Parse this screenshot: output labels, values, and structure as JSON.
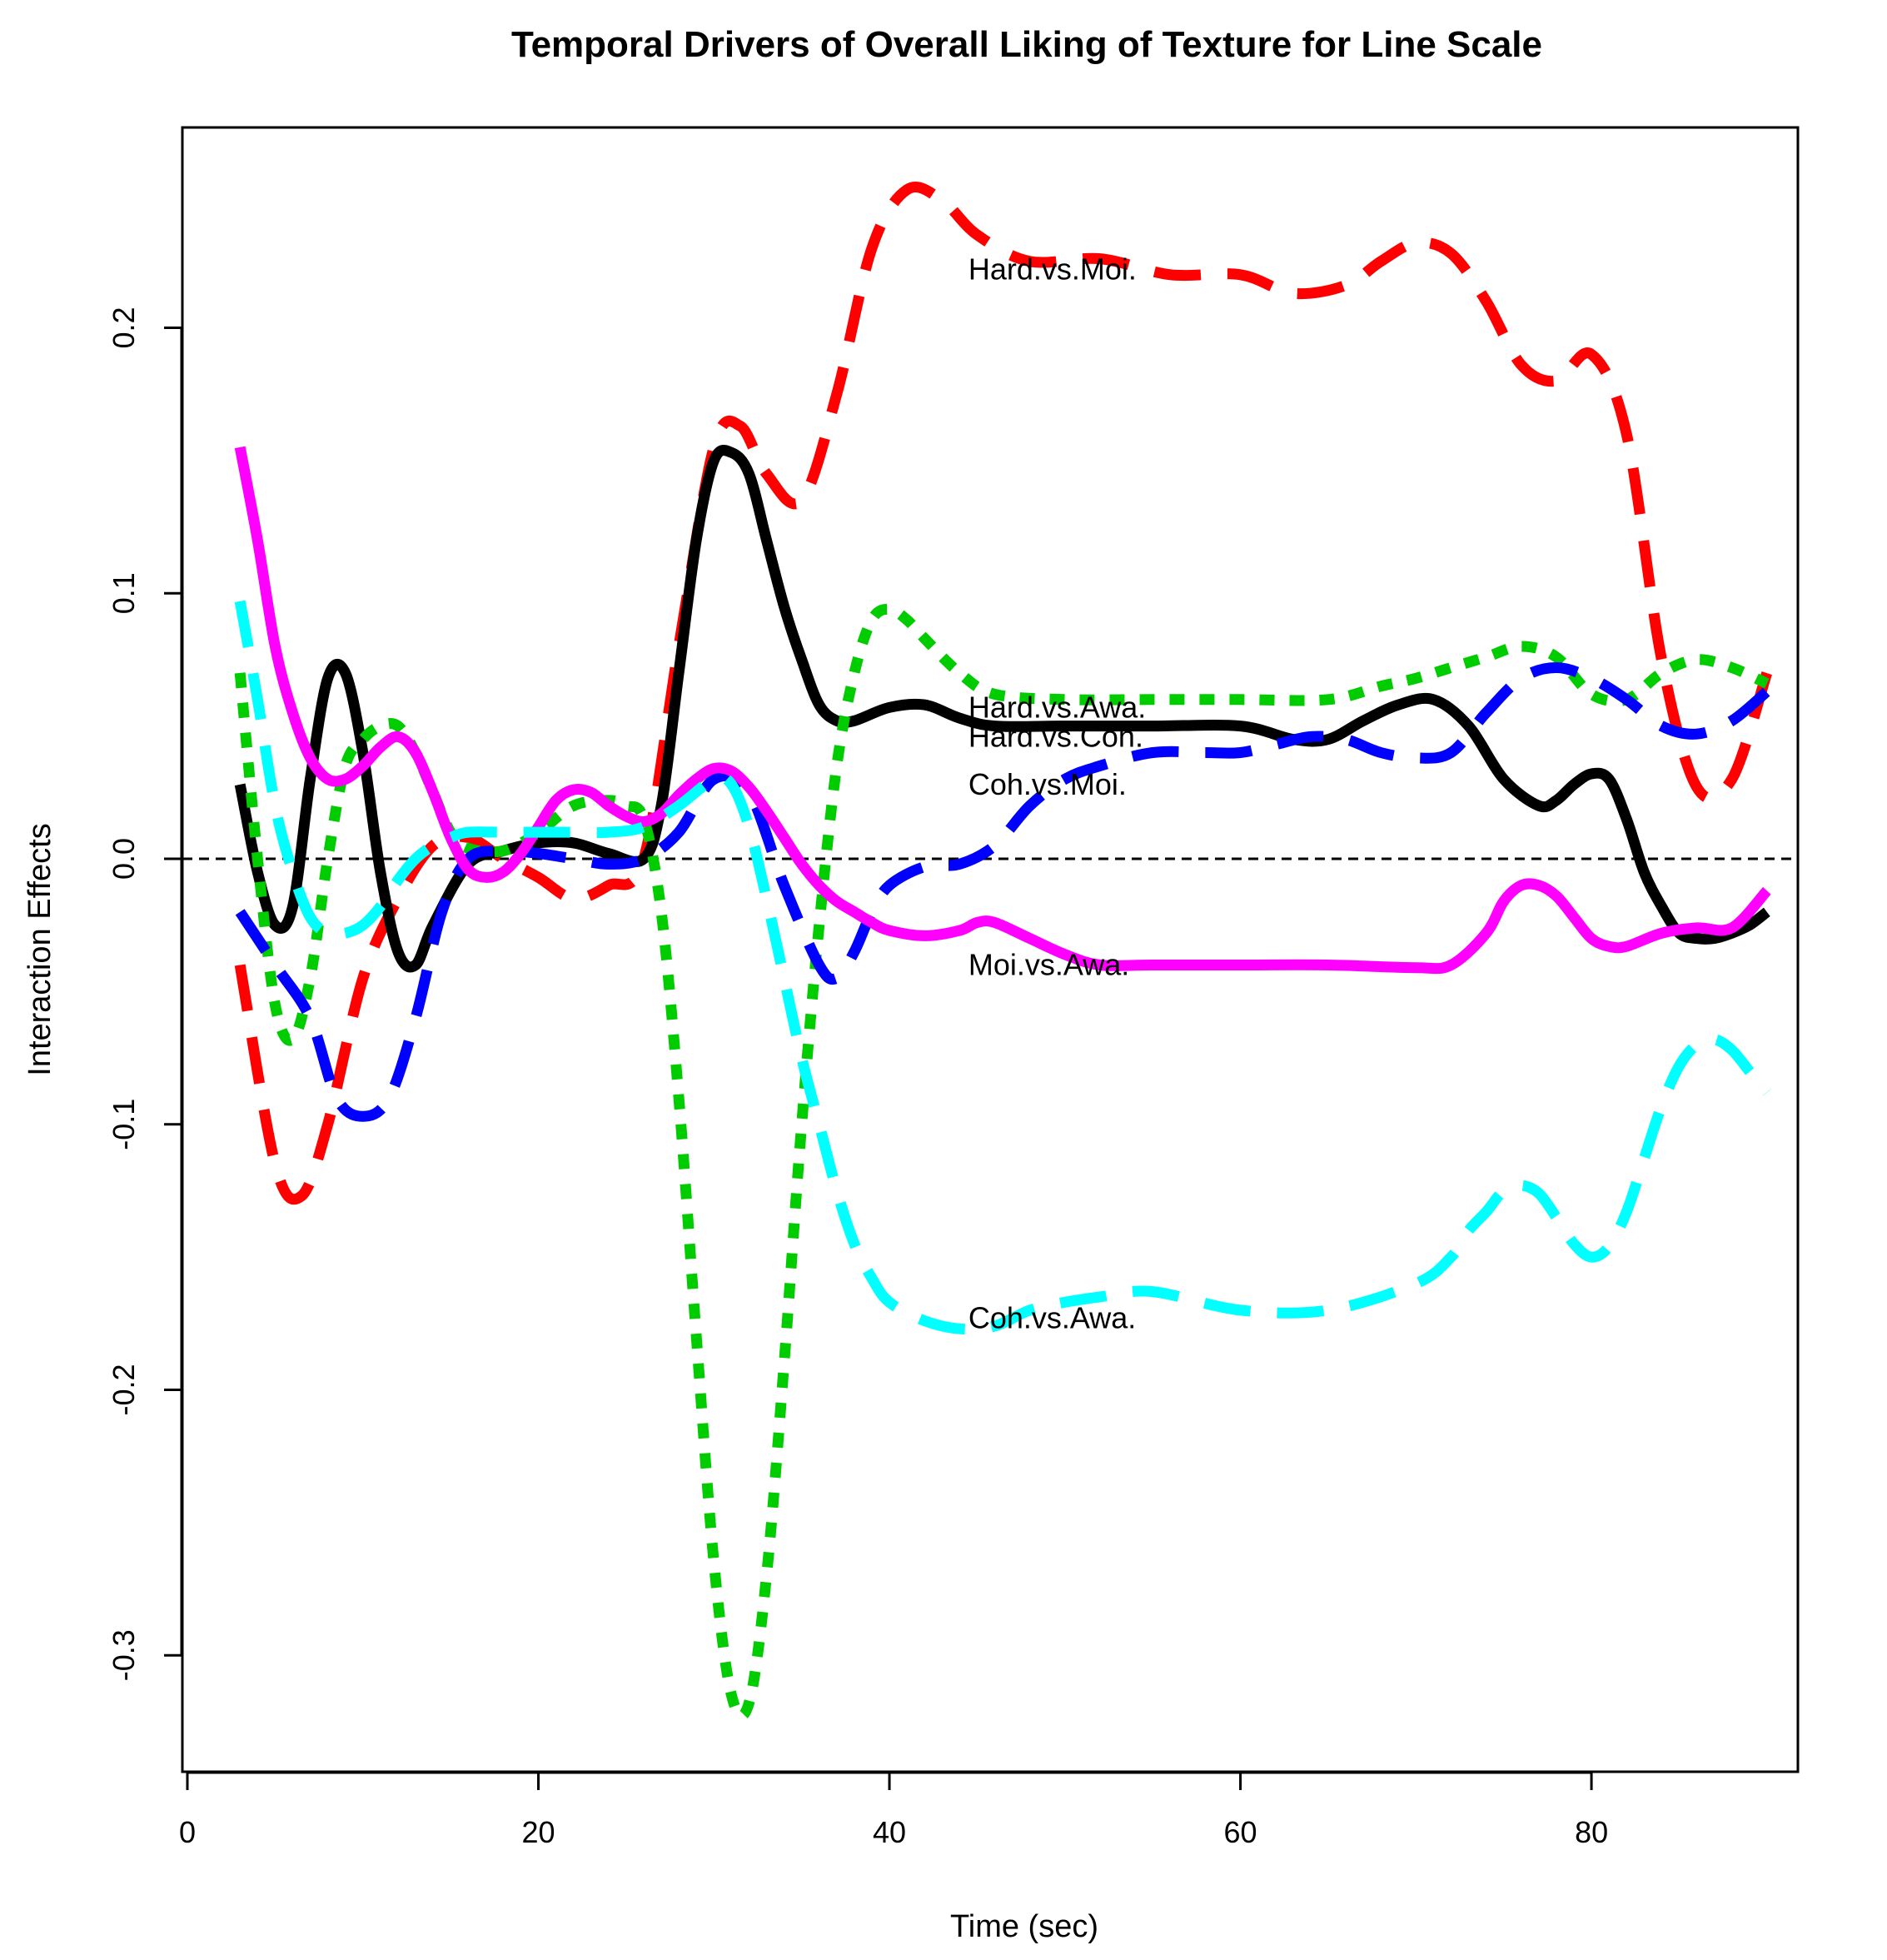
{
  "chart_data": {
    "type": "line",
    "title": "Temporal Drivers of Overall Liking of Texture for Line Scale",
    "xlabel": "Time (sec)",
    "ylabel": "Interaction Effects",
    "xlim": [
      0,
      92
    ],
    "ylim": [
      -0.33,
      0.27
    ],
    "x_ticks": [
      0,
      20,
      40,
      60,
      80
    ],
    "y_ticks": [
      -0.3,
      -0.2,
      -0.1,
      0.0,
      0.1,
      0.2
    ],
    "x_tick_labels": [
      "0",
      "20",
      "40",
      "60",
      "80"
    ],
    "y_tick_labels": [
      "-0.3",
      "-0.2",
      "-0.1",
      "0.0",
      "0.1",
      "0.2"
    ],
    "reference_line": {
      "y": 0,
      "style": "dashed",
      "color": "#000000"
    },
    "grid": false,
    "legend": "none",
    "series": [
      {
        "name": "Hard.vs.Moi.",
        "color": "#ff0000",
        "dash": "long-dash",
        "label_at": [
          44.5,
          0.222
        ],
        "x": [
          3,
          5,
          6.5,
          8,
          10,
          12,
          14,
          16,
          18,
          20,
          22,
          24,
          26,
          28,
          30,
          31.5,
          33,
          35,
          37,
          39,
          41,
          43,
          45,
          48,
          52,
          56,
          60,
          63,
          66,
          68,
          70,
          72,
          74,
          76,
          78,
          80,
          82,
          84,
          86,
          88,
          90
        ],
        "y": [
          -0.04,
          -0.115,
          -0.127,
          -0.1,
          -0.045,
          -0.015,
          0.005,
          0.008,
          0.0,
          -0.007,
          -0.015,
          -0.01,
          0.0,
          0.08,
          0.155,
          0.163,
          0.145,
          0.135,
          0.175,
          0.23,
          0.252,
          0.248,
          0.235,
          0.225,
          0.226,
          0.22,
          0.22,
          0.213,
          0.216,
          0.225,
          0.232,
          0.228,
          0.21,
          0.186,
          0.18,
          0.19,
          0.16,
          0.075,
          0.027,
          0.03,
          0.07
        ]
      },
      {
        "name": "Hard.vs.Awa.",
        "color": "#000000",
        "dash": "solid",
        "label_at": [
          44.5,
          0.057
        ],
        "x": [
          3,
          4,
          5,
          6,
          7,
          8,
          9,
          10,
          11,
          12,
          13,
          14,
          16,
          18,
          20,
          22,
          24,
          26,
          27,
          28,
          29,
          30,
          31,
          32,
          33,
          34,
          35,
          36,
          37,
          38,
          40,
          42,
          44,
          46,
          50,
          55,
          60,
          63,
          65,
          67,
          69,
          71,
          73,
          75,
          77,
          78,
          79,
          80,
          81,
          82,
          83,
          84,
          85,
          86,
          87,
          88,
          89,
          90
        ],
        "y": [
          0.028,
          -0.005,
          -0.025,
          -0.018,
          0.03,
          0.068,
          0.07,
          0.04,
          -0.005,
          -0.035,
          -0.04,
          -0.025,
          -0.002,
          0.003,
          0.006,
          0.006,
          0.002,
          0.0,
          0.02,
          0.07,
          0.12,
          0.15,
          0.153,
          0.145,
          0.12,
          0.095,
          0.075,
          0.058,
          0.052,
          0.052,
          0.057,
          0.058,
          0.053,
          0.05,
          0.05,
          0.05,
          0.05,
          0.045,
          0.045,
          0.052,
          0.058,
          0.06,
          0.05,
          0.03,
          0.02,
          0.022,
          0.028,
          0.032,
          0.03,
          0.015,
          -0.005,
          -0.018,
          -0.028,
          -0.03,
          -0.03,
          -0.028,
          -0.025,
          -0.02
        ]
      },
      {
        "name": "Hard.vs.Coh.",
        "color": "#00cc00",
        "dash": "dotted",
        "label_at": [
          44.5,
          0.046
        ],
        "x": [
          3,
          4,
          5,
          6,
          7,
          8,
          9,
          10,
          11,
          12,
          13,
          14,
          15,
          16,
          18,
          20,
          22,
          24,
          25,
          26,
          27,
          28,
          29,
          30,
          31,
          32,
          33,
          34,
          35,
          36,
          37,
          38,
          39,
          40,
          41,
          42,
          44,
          46,
          50,
          55,
          60,
          65,
          68,
          70,
          72,
          74,
          76,
          78,
          80,
          82,
          84,
          86,
          88,
          90
        ],
        "y": [
          0.07,
          0.0,
          -0.055,
          -0.068,
          -0.045,
          0.0,
          0.035,
          0.045,
          0.05,
          0.05,
          0.04,
          0.025,
          0.01,
          0.004,
          0.003,
          0.01,
          0.02,
          0.022,
          0.02,
          0.015,
          -0.02,
          -0.09,
          -0.18,
          -0.265,
          -0.315,
          -0.318,
          -0.27,
          -0.19,
          -0.1,
          -0.025,
          0.035,
          0.07,
          0.09,
          0.094,
          0.09,
          0.083,
          0.07,
          0.062,
          0.06,
          0.06,
          0.06,
          0.06,
          0.065,
          0.068,
          0.072,
          0.076,
          0.08,
          0.076,
          0.062,
          0.06,
          0.07,
          0.075,
          0.072,
          0.066
        ]
      },
      {
        "name": "Coh.vs.Moi.",
        "color": "#0000ff",
        "dash": "long-dash",
        "label_at": [
          44.5,
          0.028
        ],
        "x": [
          3,
          5,
          7,
          8.5,
          10,
          11.5,
          13,
          14.5,
          16,
          18,
          20,
          22,
          24,
          26,
          28,
          30,
          32,
          34,
          36,
          37,
          38,
          39,
          40,
          42,
          44,
          46,
          48,
          50,
          52,
          55,
          58,
          60,
          62,
          64,
          66,
          68,
          70,
          72,
          74,
          76,
          78,
          80,
          82,
          84,
          86,
          88,
          90
        ],
        "y": [
          -0.02,
          -0.04,
          -0.06,
          -0.09,
          -0.097,
          -0.09,
          -0.06,
          -0.02,
          0.0,
          0.003,
          0.002,
          0.0,
          -0.002,
          0.0,
          0.01,
          0.03,
          0.025,
          -0.01,
          -0.04,
          -0.045,
          -0.035,
          -0.02,
          -0.01,
          -0.003,
          -0.002,
          0.005,
          0.02,
          0.03,
          0.035,
          0.04,
          0.04,
          0.04,
          0.043,
          0.046,
          0.045,
          0.04,
          0.038,
          0.04,
          0.055,
          0.068,
          0.072,
          0.068,
          0.06,
          0.05,
          0.047,
          0.052,
          0.063
        ]
      },
      {
        "name": "Moi.vs.Awa.",
        "color": "#ff00ff",
        "dash": "solid",
        "label_at": [
          44.5,
          -0.04
        ],
        "x": [
          3,
          4,
          5,
          6,
          7,
          8,
          9,
          10,
          11,
          12,
          13,
          14,
          15,
          16,
          17,
          18,
          19,
          20,
          21,
          22,
          23,
          24,
          25,
          26,
          27,
          28,
          29,
          30,
          31,
          32,
          33,
          34,
          35,
          36,
          37,
          38,
          39,
          40,
          42,
          44,
          45,
          46,
          48,
          50,
          52,
          55,
          60,
          65,
          70,
          72,
          74,
          75,
          76,
          77,
          78,
          79,
          80,
          81,
          82,
          84,
          86,
          88,
          90
        ],
        "y": [
          0.155,
          0.12,
          0.08,
          0.055,
          0.038,
          0.03,
          0.03,
          0.035,
          0.042,
          0.046,
          0.04,
          0.025,
          0.008,
          -0.004,
          -0.007,
          -0.005,
          0.002,
          0.012,
          0.022,
          0.026,
          0.025,
          0.02,
          0.016,
          0.014,
          0.017,
          0.024,
          0.03,
          0.034,
          0.033,
          0.027,
          0.018,
          0.008,
          -0.002,
          -0.01,
          -0.016,
          -0.02,
          -0.024,
          -0.027,
          -0.029,
          -0.027,
          -0.024,
          -0.024,
          -0.03,
          -0.036,
          -0.04,
          -0.04,
          -0.04,
          -0.04,
          -0.041,
          -0.04,
          -0.028,
          -0.016,
          -0.01,
          -0.01,
          -0.014,
          -0.022,
          -0.03,
          -0.033,
          -0.033,
          -0.028,
          -0.026,
          -0.026,
          -0.012
        ]
      },
      {
        "name": "Coh.vs.Awa.",
        "color": "#00ffff",
        "dash": "long-dash",
        "label_at": [
          44.5,
          -0.173
        ],
        "x": [
          3,
          4,
          5,
          6,
          7,
          8,
          9,
          10,
          11,
          12,
          13,
          14,
          15,
          16,
          18,
          20,
          22,
          24,
          26,
          28,
          30,
          31,
          32,
          33,
          34,
          35,
          36,
          37,
          38,
          39,
          40,
          42,
          44,
          46,
          48,
          50,
          52,
          55,
          60,
          65,
          70,
          72,
          73,
          74,
          75,
          76,
          77,
          78,
          79,
          80,
          81,
          82,
          83,
          84,
          85,
          86,
          87,
          88,
          89,
          90
        ],
        "y": [
          0.097,
          0.06,
          0.02,
          -0.005,
          -0.022,
          -0.028,
          -0.028,
          -0.025,
          -0.018,
          -0.008,
          0.0,
          0.005,
          0.008,
          0.01,
          0.01,
          0.01,
          0.01,
          0.01,
          0.012,
          0.02,
          0.03,
          0.028,
          0.012,
          -0.015,
          -0.045,
          -0.075,
          -0.1,
          -0.125,
          -0.145,
          -0.158,
          -0.167,
          -0.174,
          -0.177,
          -0.176,
          -0.17,
          -0.167,
          -0.165,
          -0.163,
          -0.17,
          -0.17,
          -0.16,
          -0.15,
          -0.14,
          -0.133,
          -0.125,
          -0.123,
          -0.126,
          -0.135,
          -0.145,
          -0.15,
          -0.146,
          -0.133,
          -0.113,
          -0.093,
          -0.078,
          -0.07,
          -0.068,
          -0.072,
          -0.08,
          -0.088
        ]
      }
    ]
  }
}
